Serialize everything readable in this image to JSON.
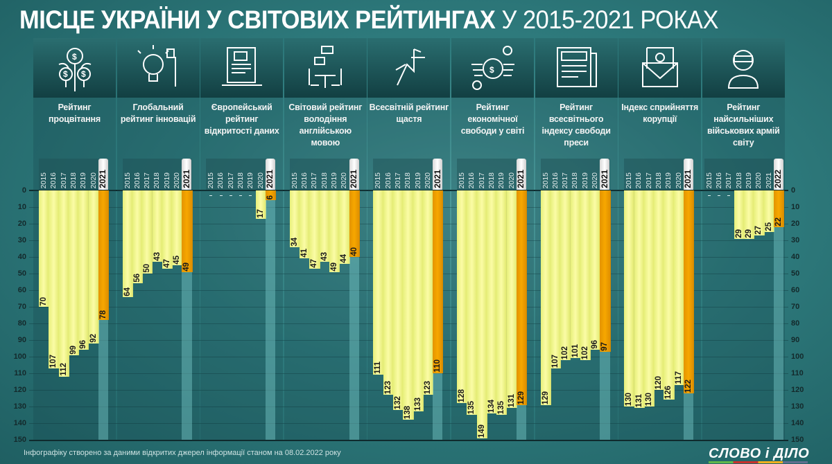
{
  "title": {
    "bold": "МІСЦЕ УКРАЇНИ У СВІТОВИХ РЕЙТИНГАХ",
    "light": "У 2015-2021 РОКАХ"
  },
  "footer": "Інфографіку створено за даними відкритих джерел інформації станом на 08.02.2022 року",
  "logo": "СЛОВО і ДІЛО",
  "colors": {
    "bar": "#f8f99a",
    "highlight": "#f5a300",
    "background": "#2f7c7e"
  },
  "chart_data": {
    "type": "bar",
    "orientation": "vertical, inverted (rank 0 at top)",
    "ylim": [
      0,
      150
    ],
    "yticks": [
      0,
      10,
      20,
      30,
      40,
      50,
      60,
      70,
      80,
      90,
      100,
      110,
      120,
      130,
      140,
      150
    ],
    "grid": true,
    "panels": [
      {
        "title": "Рейтинг процвітання",
        "icon": "money-plant-icon",
        "categories": [
          "2015",
          "2016",
          "2017",
          "2018",
          "2019",
          "2020",
          "2021"
        ],
        "values": [
          70,
          107,
          112,
          99,
          96,
          92,
          78
        ]
      },
      {
        "title": "Глобальний рейтинг інновацій",
        "icon": "lightbulb-icon",
        "categories": [
          "2015",
          "2016",
          "2017",
          "2018",
          "2019",
          "2020",
          "2021"
        ],
        "values": [
          64,
          56,
          50,
          43,
          47,
          45,
          49
        ]
      },
      {
        "title": "Європейський рейтинг відкритості даних",
        "icon": "laptop-document-icon",
        "categories": [
          "2015",
          "2016",
          "2017",
          "2018",
          "2019",
          "2020",
          "2021"
        ],
        "values": [
          null,
          null,
          null,
          null,
          null,
          17,
          6
        ]
      },
      {
        "title": "Світовий рейтинг володіння англійською мовою",
        "icon": "conversation-icon",
        "categories": [
          "2015",
          "2016",
          "2017",
          "2018",
          "2019",
          "2020",
          "2021"
        ],
        "values": [
          34,
          41,
          47,
          43,
          49,
          44,
          40
        ]
      },
      {
        "title": "Всесвітній рейтинг щастя",
        "icon": "happy-person-icon",
        "categories": [
          "2015",
          "2016",
          "2017",
          "2018",
          "2019",
          "2020",
          "2021"
        ],
        "values": [
          111,
          123,
          132,
          138,
          133,
          123,
          110
        ]
      },
      {
        "title": "Рейтинг економічної свободи у світі",
        "icon": "flying-money-icon",
        "categories": [
          "2015",
          "2016",
          "2017",
          "2018",
          "2019",
          "2020",
          "2021"
        ],
        "values": [
          128,
          135,
          149,
          134,
          135,
          131,
          129
        ]
      },
      {
        "title": "Рейтинг всесвітнього індексу свободи преси",
        "icon": "newspaper-icon",
        "categories": [
          "2015",
          "2016",
          "2017",
          "2018",
          "2019",
          "2020",
          "2021"
        ],
        "values": [
          129,
          107,
          102,
          101,
          102,
          96,
          97
        ]
      },
      {
        "title": "Індекс сприйняття корупції",
        "icon": "money-envelope-icon",
        "categories": [
          "2015",
          "2016",
          "2017",
          "2018",
          "2019",
          "2020",
          "2021"
        ],
        "values": [
          130,
          131,
          130,
          120,
          126,
          117,
          122
        ]
      },
      {
        "title": "Рейтинг найсильніших військових армій світу",
        "icon": "soldier-icon",
        "categories": [
          "2015",
          "2016",
          "2017",
          "2018",
          "2019",
          "2020",
          "2021",
          "2022"
        ],
        "values": [
          null,
          null,
          null,
          29,
          29,
          27,
          25,
          22
        ]
      }
    ]
  }
}
